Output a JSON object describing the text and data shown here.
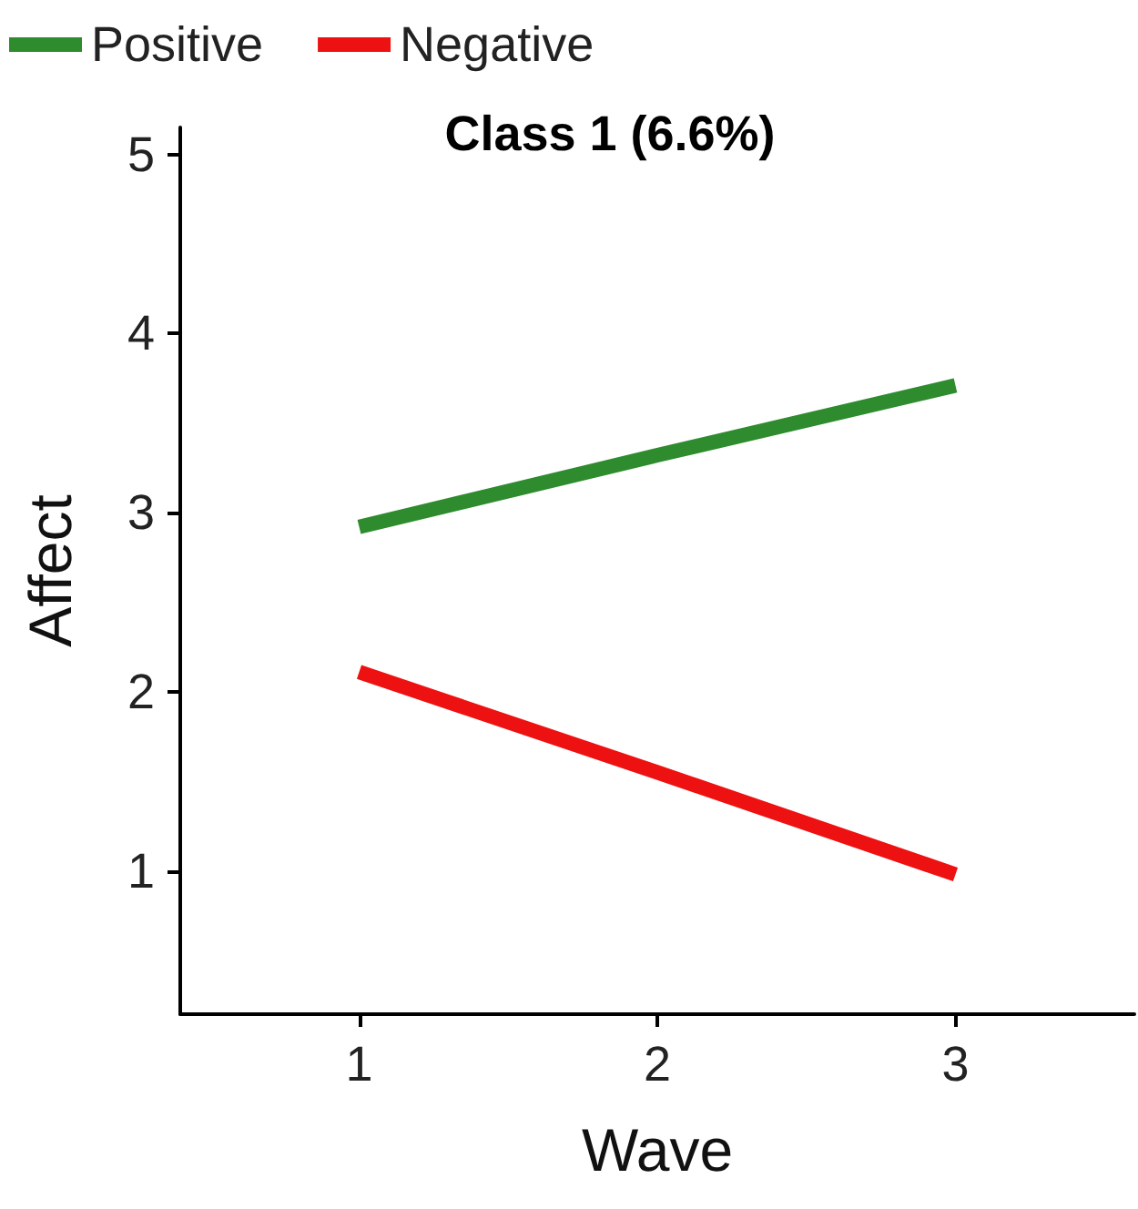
{
  "chart_data": {
    "type": "line",
    "title": "Class 1 (6.6%)",
    "xlabel": "Wave",
    "ylabel": "Affect",
    "x": [
      1,
      2,
      3
    ],
    "series": [
      {
        "name": "Positive",
        "color": "#2e8b2e",
        "values": [
          2.92,
          3.32,
          3.71
        ]
      },
      {
        "name": "Negative",
        "color": "#ee1111",
        "values": [
          2.11,
          1.55,
          0.98
        ]
      }
    ],
    "xlim": [
      0.4,
      3.6
    ],
    "xticks": [
      1,
      2,
      3
    ],
    "ylim": [
      0.2,
      5.15
    ],
    "yticks": [
      1,
      2,
      3,
      4,
      5
    ],
    "grid": false,
    "legend": "top left",
    "marker": "none",
    "line_style": "solid"
  }
}
